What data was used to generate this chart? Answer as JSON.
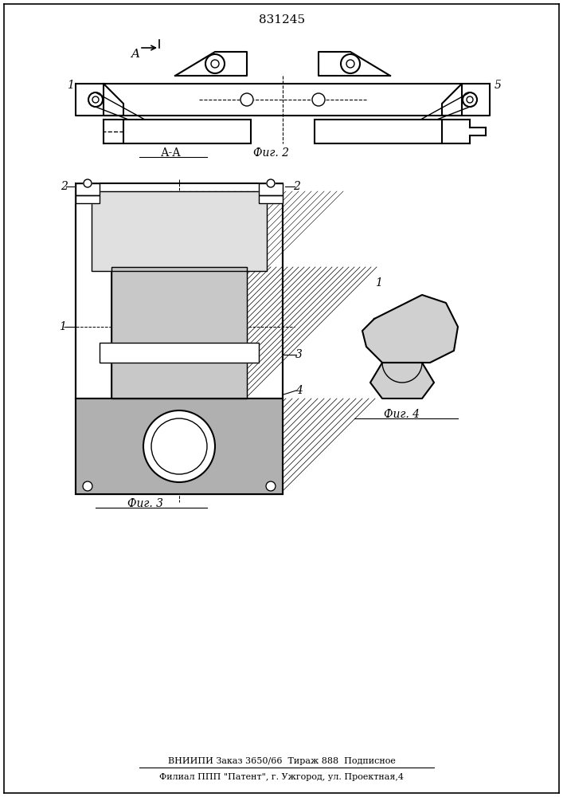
{
  "title": "831245",
  "footer_line1": "ВНИИПИ Заказ 3650/66  Тираж 888  Подписное",
  "footer_line2": "Филиал ППП \"Патент\", г. Ужгород, ул. Проектная,4",
  "label_A": "A",
  "label_AA": "А-А",
  "label_fig2": "Фиг. 2",
  "label_fig3": "Фиг. 3",
  "label_fig4": "Фиг. 4",
  "bg_color": "#ffffff",
  "line_color": "#000000",
  "hatch_color": "#000000",
  "fig_width": 7.07,
  "fig_height": 10.0,
  "dpi": 100
}
